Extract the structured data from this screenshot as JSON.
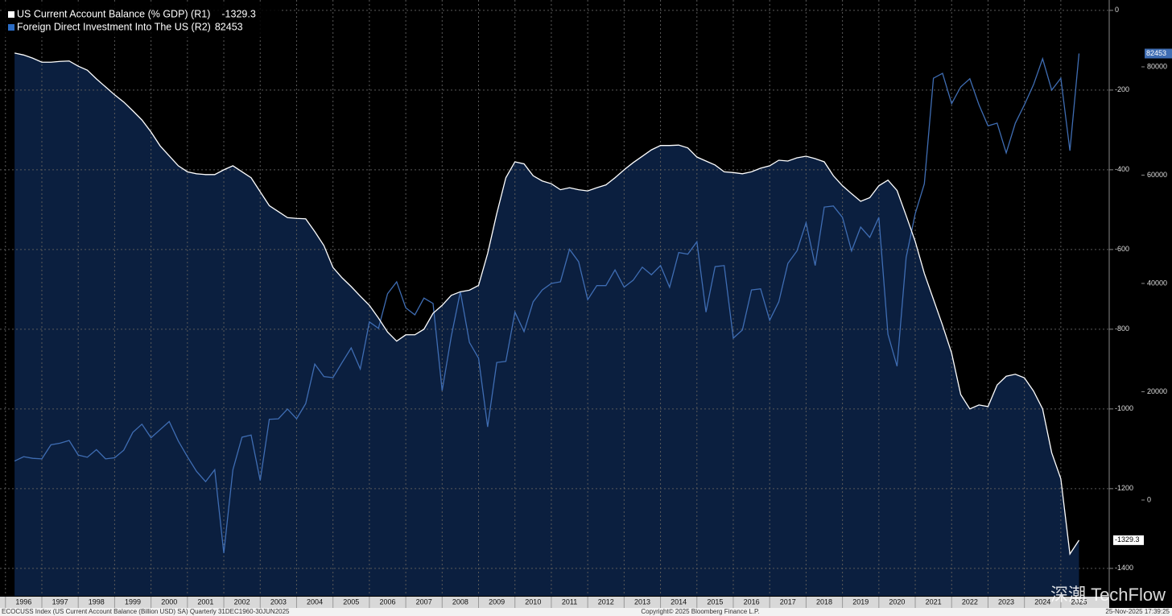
{
  "chart_data": {
    "type": "line",
    "x": [
      1996.25,
      1996.5,
      1996.75,
      1997,
      1997.25,
      1997.5,
      1997.75,
      1998,
      1998.25,
      1998.5,
      1998.75,
      1999,
      1999.25,
      1999.5,
      1999.75,
      2000,
      2000.25,
      2000.5,
      2000.75,
      2001,
      2001.25,
      2001.5,
      2001.75,
      2002,
      2002.25,
      2002.5,
      2002.75,
      2003,
      2003.25,
      2003.5,
      2003.75,
      2004,
      2004.25,
      2004.5,
      2004.75,
      2005,
      2005.25,
      2005.5,
      2005.75,
      2006,
      2006.25,
      2006.5,
      2006.75,
      2007,
      2007.25,
      2007.5,
      2007.75,
      2008,
      2008.25,
      2008.5,
      2008.75,
      2009,
      2009.25,
      2009.5,
      2009.75,
      2010,
      2010.25,
      2010.5,
      2010.75,
      2011,
      2011.25,
      2011.5,
      2011.75,
      2012,
      2012.25,
      2012.5,
      2012.75,
      2013,
      2013.25,
      2013.5,
      2013.75,
      2014,
      2014.25,
      2014.5,
      2014.75,
      2015,
      2015.25,
      2015.5,
      2015.75,
      2016,
      2016.25,
      2016.5,
      2016.75,
      2017,
      2017.25,
      2017.5,
      2017.75,
      2018,
      2018.25,
      2018.5,
      2018.75,
      2019,
      2019.25,
      2019.5,
      2019.75,
      2020,
      2020.25,
      2020.5,
      2020.75,
      2021,
      2021.25,
      2021.5,
      2021.75,
      2022,
      2022.25,
      2022.5,
      2022.75,
      2023,
      2023.25,
      2023.5,
      2023.75,
      2024,
      2024.25,
      2024.5,
      2024.75,
      2025,
      2025.25,
      2025.5
    ],
    "series": [
      {
        "name": "US Current Account Balance (% GDP) (R1)",
        "color": "#ffffff",
        "area_color": "#0b1f3f",
        "axis": "y",
        "values": [
          -107,
          -112,
          -120,
          -130,
          -130,
          -128,
          -127,
          -140,
          -150,
          -172,
          -192,
          -212,
          -230,
          -252,
          -275,
          -305,
          -340,
          -365,
          -390,
          -405,
          -410,
          -412,
          -412,
          -400,
          -390,
          -405,
          -420,
          -455,
          -490,
          -505,
          -520,
          -522,
          -523,
          -555,
          -590,
          -645,
          -671,
          -693,
          -717,
          -740,
          -772,
          -807,
          -830,
          -814,
          -814,
          -800,
          -760,
          -740,
          -715,
          -706,
          -702,
          -690,
          -610,
          -510,
          -420,
          -380,
          -385,
          -415,
          -428,
          -435,
          -450,
          -445,
          -450,
          -453,
          -445,
          -438,
          -420,
          -400,
          -382,
          -366,
          -350,
          -339,
          -339,
          -338,
          -345,
          -368,
          -378,
          -388,
          -405,
          -407,
          -410,
          -405,
          -396,
          -390,
          -376,
          -378,
          -370,
          -366,
          -372,
          -380,
          -415,
          -440,
          -460,
          -479,
          -470,
          -440,
          -426,
          -452,
          -515,
          -580,
          -660,
          -725,
          -790,
          -860,
          -964,
          -1000,
          -990,
          -994,
          -940,
          -918,
          -913,
          -922,
          -955,
          -1000,
          -1110,
          -1175,
          -1364,
          -1329.3
        ]
      },
      {
        "name": "Foreign Direct Investment Into The US (R2)",
        "color": "#3f6db3",
        "axis": "y2",
        "values": [
          7200,
          8000,
          7700,
          7600,
          10200,
          10500,
          11000,
          8300,
          7900,
          9300,
          7600,
          7800,
          9200,
          12500,
          14000,
          11500,
          13000,
          14500,
          10900,
          8000,
          5300,
          3400,
          5600,
          -9800,
          5600,
          11600,
          12000,
          3600,
          14900,
          15000,
          16800,
          15000,
          17800,
          25100,
          22800,
          22600,
          25400,
          28100,
          24200,
          32900,
          31700,
          38100,
          40300,
          35500,
          34200,
          37300,
          36300,
          20200,
          30200,
          38500,
          29100,
          26200,
          13500,
          25400,
          25600,
          34700,
          31100,
          36600,
          38800,
          40000,
          40300,
          46300,
          44000,
          37000,
          39600,
          39600,
          42500,
          39300,
          40600,
          43000,
          41600,
          43300,
          39300,
          45700,
          45400,
          47700,
          34700,
          43100,
          43300,
          29900,
          31400,
          38800,
          39000,
          33200,
          36600,
          43700,
          46000,
          51200,
          43300,
          54100,
          54300,
          52200,
          46000,
          50400,
          48500,
          52200,
          30600,
          24700,
          44800,
          52900,
          58400,
          77900,
          78800,
          73200,
          76300,
          77800,
          73000,
          69100,
          69600,
          64100,
          69600,
          73000,
          76700,
          81500,
          75700,
          77900,
          64500,
          82453
        ]
      }
    ],
    "xlim": [
      1995.85,
      2026.33
    ],
    "xticks": [
      1996,
      1997,
      1998,
      1999,
      2000,
      2001,
      2002,
      2003,
      2004,
      2005,
      2006,
      2007,
      2008,
      2009,
      2010,
      2011,
      2012,
      2013,
      2014,
      2015,
      2016,
      2017,
      2018,
      2019,
      2020,
      2021,
      2022,
      2023,
      2024,
      2025
    ],
    "ylim": [
      -1469,
      26
    ],
    "yticks": [
      0,
      -200,
      -400,
      -600,
      -800,
      -1000,
      -1200,
      -1400
    ],
    "y2lim": [
      -17700,
      92340
    ],
    "y2ticks": [
      0,
      20000,
      40000,
      60000,
      80000
    ],
    "grid": true,
    "legend": "top-left",
    "footer": {
      "source": "ECOCUSS Index (US Current Account Balance (Billion USD) SA) Quarterly 31DEC1960-30JUN2025",
      "copyright": "Copyright© 2025 Bloomberg Finance L.P.",
      "timestamp": "25-Nov-2025 17:39:25"
    },
    "watermark": "深潮 TechFlow"
  }
}
